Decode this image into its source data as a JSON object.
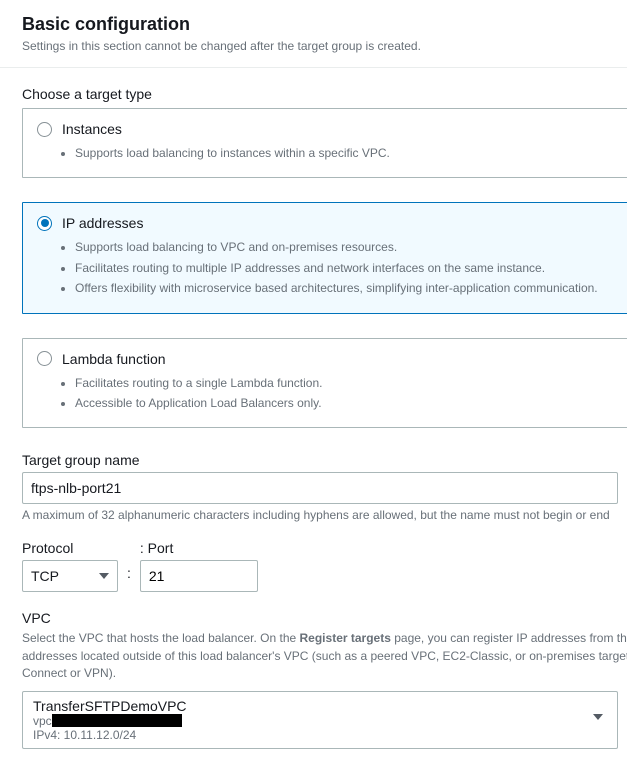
{
  "header": {
    "title": "Basic configuration",
    "subtitle": "Settings in this section cannot be changed after the target group is created."
  },
  "target_type": {
    "label": "Choose a target type",
    "options": {
      "instances": {
        "title": "Instances",
        "bullets": [
          "Supports load balancing to instances within a specific VPC."
        ]
      },
      "ip": {
        "title": "IP addresses",
        "bullets": [
          "Supports load balancing to VPC and on-premises resources.",
          "Facilitates routing to multiple IP addresses and network interfaces on the same instance.",
          "Offers flexibility with microservice based architectures, simplifying inter-application communication."
        ]
      },
      "lambda": {
        "title": "Lambda function",
        "bullets": [
          "Facilitates routing to a single Lambda function.",
          "Accessible to Application Load Balancers only."
        ]
      }
    }
  },
  "target_group_name": {
    "label": "Target group name",
    "value": "ftps-nlb-port21",
    "hint": "A maximum of 32 alphanumeric characters including hyphens are allowed, but the name must not begin or end"
  },
  "protocol_port": {
    "protocol_label": "Protocol",
    "port_label": ": Port",
    "protocol_value": "TCP",
    "port_value": "21"
  },
  "vpc": {
    "label": "VPC",
    "desc_pre": "Select the VPC that hosts the load balancer. On the ",
    "desc_bold": "Register targets",
    "desc_post": " page, you can register IP addresses from this addresses located outside of this load balancer's VPC (such as a peered VPC, EC2-Classic, or on-premises targets Connect or VPN).",
    "selected": {
      "name": "TransferSFTPDemoVPC",
      "id_prefix": "vpc",
      "cidr": "IPv4: 10.11.12.0/24"
    }
  }
}
